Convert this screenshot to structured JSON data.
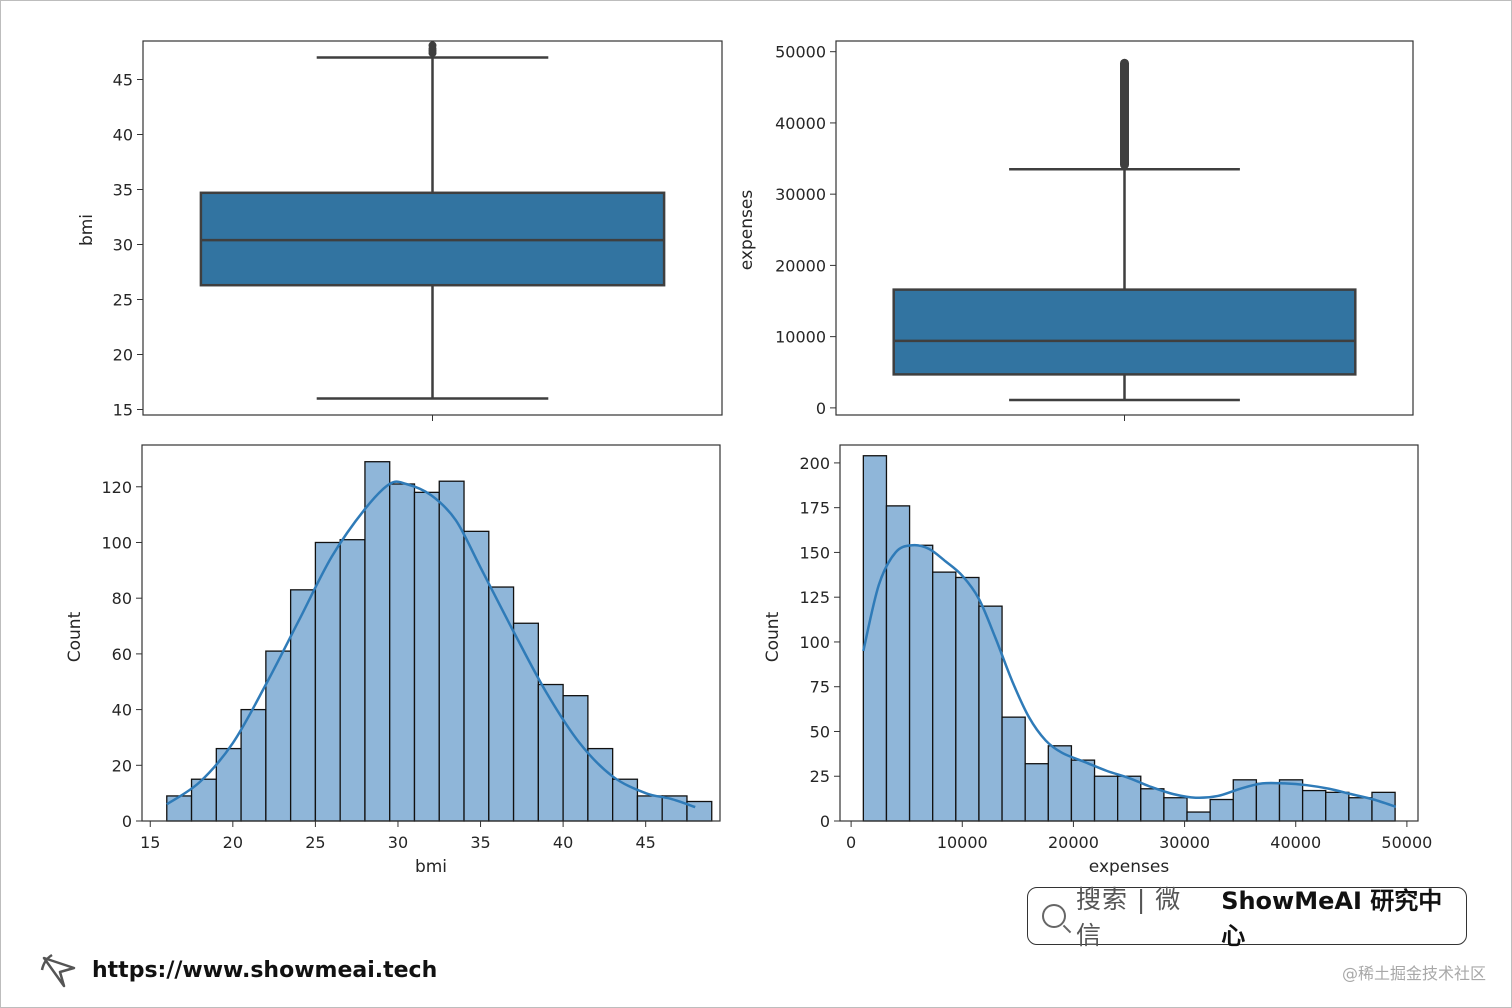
{
  "colors": {
    "box_fill": "#3274a1",
    "box_line": "#3f3f3f",
    "hist_fill": "#8fb6d9",
    "hist_edge": "#111111",
    "kde_line": "#2f7bb8"
  },
  "chart_data": [
    {
      "type": "box",
      "ylabel": "bmi",
      "ylim": [
        14.5,
        48.5
      ],
      "yticks": [
        15,
        20,
        25,
        30,
        35,
        40,
        45
      ],
      "grid": false,
      "stats": {
        "whisker_low": 16.0,
        "q1": 26.3,
        "median": 30.4,
        "q3": 34.7,
        "whisker_high": 47.0
      },
      "outliers": [
        47.4,
        47.6,
        47.8,
        48.1
      ]
    },
    {
      "type": "box",
      "ylabel": "expenses",
      "ylim": [
        -1000,
        51500
      ],
      "yticks": [
        0,
        10000,
        20000,
        30000,
        40000,
        50000
      ],
      "grid": false,
      "stats": {
        "whisker_low": 1100,
        "q1": 4700,
        "median": 9400,
        "q3": 16600,
        "whisker_high": 33500
      },
      "outlier_range": [
        33500,
        49000
      ]
    },
    {
      "type": "bar",
      "xlabel": "bmi",
      "ylabel": "Count",
      "xlim": [
        14.5,
        49.5
      ],
      "ylim": [
        0,
        135
      ],
      "xticks": [
        15,
        20,
        25,
        30,
        35,
        40,
        45
      ],
      "yticks": [
        0,
        20,
        40,
        60,
        80,
        100,
        120
      ],
      "grid": false,
      "bins_start": 16.0,
      "bin_width": 1.5,
      "counts": [
        9,
        15,
        26,
        40,
        61,
        83,
        100,
        101,
        129,
        121,
        118,
        122,
        104,
        84,
        71,
        49,
        45,
        26,
        15,
        9,
        9,
        7
      ],
      "kde": [
        [
          16.0,
          6
        ],
        [
          18.0,
          14
        ],
        [
          20.0,
          28
        ],
        [
          22.0,
          49
        ],
        [
          24.0,
          72
        ],
        [
          26.0,
          95
        ],
        [
          28.0,
          112
        ],
        [
          29.5,
          121
        ],
        [
          30.5,
          121
        ],
        [
          32.0,
          117
        ],
        [
          33.5,
          108
        ],
        [
          35.0,
          91
        ],
        [
          37.0,
          68
        ],
        [
          39.0,
          46
        ],
        [
          41.0,
          28
        ],
        [
          43.0,
          16
        ],
        [
          45.0,
          10
        ],
        [
          46.5,
          8
        ],
        [
          48.0,
          5
        ]
      ]
    },
    {
      "type": "bar",
      "xlabel": "expenses",
      "ylabel": "Count",
      "xlim": [
        -1000,
        51000
      ],
      "ylim": [
        0,
        210
      ],
      "xticks": [
        0,
        10000,
        20000,
        30000,
        40000,
        50000
      ],
      "yticks": [
        0,
        25,
        50,
        75,
        100,
        125,
        150,
        175,
        200
      ],
      "grid": false,
      "bins_start": 1100,
      "bin_width": 2080,
      "counts": [
        204,
        176,
        154,
        139,
        136,
        120,
        58,
        32,
        42,
        34,
        25,
        25,
        18,
        13,
        5,
        12,
        23,
        21,
        23,
        17,
        16,
        13,
        16
      ],
      "kde": [
        [
          1100,
          95
        ],
        [
          2500,
          132
        ],
        [
          4000,
          150
        ],
        [
          5500,
          154
        ],
        [
          7000,
          152
        ],
        [
          8500,
          145
        ],
        [
          10000,
          137
        ],
        [
          11500,
          124
        ],
        [
          13000,
          102
        ],
        [
          14500,
          78
        ],
        [
          16000,
          58
        ],
        [
          17500,
          45
        ],
        [
          19000,
          38
        ],
        [
          21000,
          33
        ],
        [
          23000,
          28
        ],
        [
          25000,
          24
        ],
        [
          27000,
          19
        ],
        [
          29000,
          15
        ],
        [
          31000,
          13
        ],
        [
          33000,
          14
        ],
        [
          35000,
          18
        ],
        [
          37000,
          21
        ],
        [
          39000,
          21
        ],
        [
          41000,
          20
        ],
        [
          43000,
          18
        ],
        [
          45000,
          15
        ],
        [
          47000,
          12
        ],
        [
          49000,
          8
        ]
      ]
    }
  ],
  "badge": {
    "search_text": "搜索 | 微信",
    "brand_text": "ShowMeAI 研究中心"
  },
  "footer": {
    "url": "https://www.showmeai.tech"
  },
  "watermark": "@稀土掘金技术社区"
}
